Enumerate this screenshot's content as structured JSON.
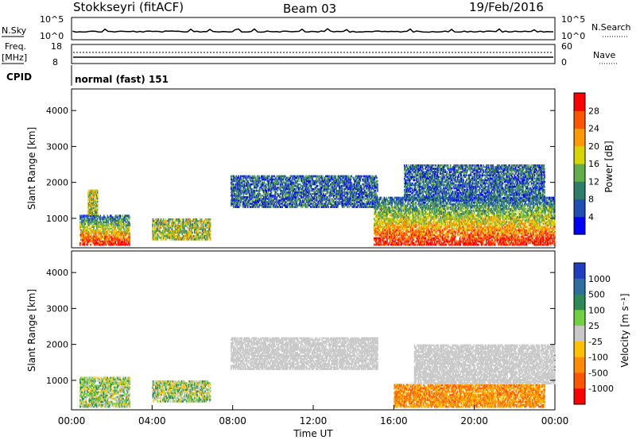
{
  "header": {
    "station": "Stokkseyri (fitACF)",
    "beam": "Beam 03",
    "date": "19/Feb/2016"
  },
  "strips": {
    "nsky_label": "N.Sky",
    "nsky_ticks": [
      "10^5",
      "10^0"
    ],
    "nsearch_label": "N.Search",
    "nsearch_ticks": [
      "10^5",
      "10^0"
    ],
    "freq_label_1": "Freq.",
    "freq_label_2": "[MHz]",
    "freq_ticks": [
      "18",
      "8"
    ],
    "nave_label": "Nave",
    "nave_ticks": [
      "60",
      "0"
    ],
    "cpid_label": "CPID",
    "cpid_value": "normal (fast) 151"
  },
  "chart_data": [
    {
      "type": "heatmap",
      "panel": "power",
      "ylabel": "Slant Range [km]",
      "yticks": [
        "1000",
        "2000",
        "3000",
        "4000"
      ],
      "ylim": [
        180,
        4600
      ],
      "xlim": [
        0,
        24
      ],
      "colorbar_label": "Power [dB]",
      "colorbar_ticks": [
        "4",
        "8",
        "12",
        "16",
        "20",
        "24",
        "28"
      ],
      "colorbar_colors": [
        "#0000ff",
        "#1f4fb0",
        "#2e7d6b",
        "#5fae4a",
        "#d7d400",
        "#ff9900",
        "#ff5500",
        "#ff0000"
      ],
      "regions": [
        {
          "t0": 0.4,
          "t1": 2.9,
          "r0": 250,
          "r1": 1100,
          "level": "high"
        },
        {
          "t0": 0.8,
          "t1": 1.3,
          "r0": 1100,
          "r1": 1800,
          "level": "mid"
        },
        {
          "t0": 4.0,
          "t1": 6.9,
          "r0": 400,
          "r1": 1000,
          "level": "mid"
        },
        {
          "t0": 7.9,
          "t1": 15.2,
          "r0": 1300,
          "r1": 2200,
          "level": "low"
        },
        {
          "t0": 15.0,
          "t1": 24.0,
          "r0": 250,
          "r1": 1600,
          "level": "high"
        },
        {
          "t0": 16.5,
          "t1": 23.5,
          "r0": 1500,
          "r1": 2500,
          "level": "low"
        }
      ]
    },
    {
      "type": "heatmap",
      "panel": "velocity",
      "ylabel": "Slant Range [km]",
      "yticks": [
        "1000",
        "2000",
        "3000",
        "4000"
      ],
      "ylim": [
        180,
        4600
      ],
      "xlim": [
        0,
        24
      ],
      "xticks": [
        "00:00",
        "04:00",
        "08:00",
        "12:00",
        "16:00",
        "20:00",
        "00:00"
      ],
      "xlabel": "Time UT",
      "colorbar_label": "Velocity [m s⁻¹]",
      "colorbar_ticks": [
        "1000",
        "500",
        "100",
        "25",
        "-25",
        "-100",
        "-500",
        "-1000"
      ],
      "colorbar_colors": [
        "#1f3fc0",
        "#2e6fa0",
        "#2e8b57",
        "#6fd040",
        "#c8c8c8",
        "#ffc000",
        "#ff8c00",
        "#ff5500",
        "#ff0000"
      ],
      "regions": [
        {
          "t0": 0.4,
          "t1": 2.9,
          "r0": 250,
          "r1": 1100,
          "level": "mixed"
        },
        {
          "t0": 4.0,
          "t1": 6.9,
          "r0": 400,
          "r1": 1000,
          "level": "mixed"
        },
        {
          "t0": 7.9,
          "t1": 15.2,
          "r0": 1300,
          "r1": 2200,
          "level": "zero"
        },
        {
          "t0": 16.0,
          "t1": 23.5,
          "r0": 250,
          "r1": 900,
          "level": "neg"
        },
        {
          "t0": 17.0,
          "t1": 24.0,
          "r0": 900,
          "r1": 2000,
          "level": "zero"
        }
      ]
    }
  ]
}
